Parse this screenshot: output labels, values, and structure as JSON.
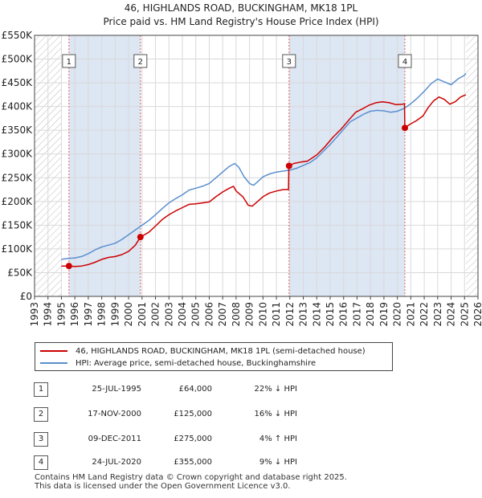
{
  "chart_data": {
    "type": "line",
    "title": "46, HIGHLANDS ROAD, BUCKINGHAM, MK18 1PL",
    "subtitle": "Price paid vs. HM Land Registry's House Price Index (HPI)",
    "xlim": [
      1993,
      2026
    ],
    "ylim": [
      0,
      550000
    ],
    "x_ticks": [
      "1993",
      "1994",
      "1995",
      "1996",
      "1997",
      "1998",
      "1999",
      "2000",
      "2001",
      "2002",
      "2003",
      "2004",
      "2005",
      "2006",
      "2007",
      "2008",
      "2009",
      "2010",
      "2011",
      "2012",
      "2013",
      "2014",
      "2015",
      "2016",
      "2017",
      "2018",
      "2019",
      "2020",
      "2021",
      "2022",
      "2023",
      "2024",
      "2025",
      "2026"
    ],
    "y_ticks": [
      {
        "value": 0,
        "label": "£0"
      },
      {
        "value": 50000,
        "label": "£50K"
      },
      {
        "value": 100000,
        "label": "£100K"
      },
      {
        "value": 150000,
        "label": "£150K"
      },
      {
        "value": 200000,
        "label": "£200K"
      },
      {
        "value": 250000,
        "label": "£250K"
      },
      {
        "value": 300000,
        "label": "£300K"
      },
      {
        "value": 350000,
        "label": "£350K"
      },
      {
        "value": 400000,
        "label": "£400K"
      },
      {
        "value": 450000,
        "label": "£450K"
      },
      {
        "value": 500000,
        "label": "£500K"
      },
      {
        "value": 550000,
        "label": "£550K"
      }
    ],
    "hatch_before": 1995.0,
    "hatch_after": 2025.1,
    "series": [
      {
        "name": "46, HIGHLANDS ROAD, BUCKINGHAM, MK18 1PL (semi-detached house)",
        "color": "#cc0000",
        "points": [
          [
            1995.0,
            64000
          ],
          [
            1995.56,
            64000
          ],
          [
            1996,
            63000
          ],
          [
            1996.5,
            64000
          ],
          [
            1997,
            67000
          ],
          [
            1997.5,
            72000
          ],
          [
            1998,
            78000
          ],
          [
            1998.5,
            82000
          ],
          [
            1999,
            84000
          ],
          [
            1999.5,
            88000
          ],
          [
            2000,
            95000
          ],
          [
            2000.5,
            108000
          ],
          [
            2000.88,
            125000
          ],
          [
            2001,
            127000
          ],
          [
            2001.5,
            135000
          ],
          [
            2002,
            148000
          ],
          [
            2002.5,
            162000
          ],
          [
            2003,
            172000
          ],
          [
            2003.5,
            180000
          ],
          [
            2004,
            187000
          ],
          [
            2004.5,
            194000
          ],
          [
            2005,
            195000
          ],
          [
            2005.5,
            197000
          ],
          [
            2006,
            199000
          ],
          [
            2006.5,
            210000
          ],
          [
            2007,
            220000
          ],
          [
            2007.5,
            228000
          ],
          [
            2007.8,
            232000
          ],
          [
            2008,
            222000
          ],
          [
            2008.5,
            210000
          ],
          [
            2008.9,
            192000
          ],
          [
            2009.2,
            190000
          ],
          [
            2009.6,
            200000
          ],
          [
            2010,
            210000
          ],
          [
            2010.5,
            218000
          ],
          [
            2011,
            222000
          ],
          [
            2011.5,
            225000
          ],
          [
            2011.9,
            225000
          ],
          [
            2011.93,
            275000
          ],
          [
            2012.3,
            280000
          ],
          [
            2012.8,
            283000
          ],
          [
            2013.3,
            285000
          ],
          [
            2014,
            298000
          ],
          [
            2014.6,
            315000
          ],
          [
            2015.2,
            335000
          ],
          [
            2015.8,
            352000
          ],
          [
            2016.4,
            372000
          ],
          [
            2016.9,
            388000
          ],
          [
            2017.4,
            395000
          ],
          [
            2017.9,
            403000
          ],
          [
            2018.4,
            408000
          ],
          [
            2018.9,
            410000
          ],
          [
            2019.4,
            408000
          ],
          [
            2019.9,
            404000
          ],
          [
            2020.4,
            405000
          ],
          [
            2020.53,
            406000
          ],
          [
            2020.56,
            355000
          ],
          [
            2020.9,
            362000
          ],
          [
            2021.4,
            370000
          ],
          [
            2021.9,
            380000
          ],
          [
            2022.3,
            398000
          ],
          [
            2022.7,
            412000
          ],
          [
            2023.1,
            420000
          ],
          [
            2023.5,
            415000
          ],
          [
            2023.9,
            405000
          ],
          [
            2024.3,
            410000
          ],
          [
            2024.7,
            420000
          ],
          [
            2025.1,
            425000
          ]
        ]
      },
      {
        "name": "HPI: Average price, semi-detached house, Buckinghamshire",
        "color": "#5b8fcf",
        "points": [
          [
            1995.0,
            78000
          ],
          [
            1995.5,
            80000
          ],
          [
            1996,
            81000
          ],
          [
            1996.5,
            84000
          ],
          [
            1997,
            90000
          ],
          [
            1997.5,
            98000
          ],
          [
            1998,
            104000
          ],
          [
            1998.5,
            108000
          ],
          [
            1999,
            112000
          ],
          [
            1999.5,
            120000
          ],
          [
            2000,
            130000
          ],
          [
            2000.5,
            140000
          ],
          [
            2001,
            150000
          ],
          [
            2001.5,
            160000
          ],
          [
            2002,
            172000
          ],
          [
            2002.5,
            185000
          ],
          [
            2003,
            197000
          ],
          [
            2003.5,
            206000
          ],
          [
            2004,
            214000
          ],
          [
            2004.5,
            224000
          ],
          [
            2005,
            228000
          ],
          [
            2005.5,
            232000
          ],
          [
            2006,
            238000
          ],
          [
            2006.5,
            250000
          ],
          [
            2007,
            262000
          ],
          [
            2007.5,
            274000
          ],
          [
            2007.9,
            280000
          ],
          [
            2008.2,
            272000
          ],
          [
            2008.6,
            252000
          ],
          [
            2009,
            238000
          ],
          [
            2009.3,
            234000
          ],
          [
            2009.7,
            244000
          ],
          [
            2010,
            252000
          ],
          [
            2010.5,
            258000
          ],
          [
            2011,
            262000
          ],
          [
            2011.5,
            264000
          ],
          [
            2012,
            266000
          ],
          [
            2012.5,
            270000
          ],
          [
            2013,
            276000
          ],
          [
            2013.5,
            282000
          ],
          [
            2014,
            292000
          ],
          [
            2014.5,
            306000
          ],
          [
            2015,
            320000
          ],
          [
            2015.5,
            336000
          ],
          [
            2016,
            352000
          ],
          [
            2016.5,
            368000
          ],
          [
            2017,
            376000
          ],
          [
            2017.5,
            384000
          ],
          [
            2018,
            390000
          ],
          [
            2018.5,
            392000
          ],
          [
            2019,
            391000
          ],
          [
            2019.5,
            388000
          ],
          [
            2020,
            390000
          ],
          [
            2020.5,
            396000
          ],
          [
            2021,
            406000
          ],
          [
            2021.5,
            418000
          ],
          [
            2022,
            432000
          ],
          [
            2022.5,
            448000
          ],
          [
            2023,
            458000
          ],
          [
            2023.5,
            452000
          ],
          [
            2024,
            446000
          ],
          [
            2024.5,
            458000
          ],
          [
            2025,
            466000
          ],
          [
            2025.1,
            470000
          ]
        ]
      }
    ],
    "sales": [
      {
        "num": "1",
        "x": 1995.56,
        "price": 64000
      },
      {
        "num": "2",
        "x": 2000.88,
        "price": 125000
      },
      {
        "num": "3",
        "x": 2011.94,
        "price": 275000
      },
      {
        "num": "4",
        "x": 2020.56,
        "price": 355000
      }
    ],
    "legend": [
      "46, HIGHLANDS ROAD, BUCKINGHAM, MK18 1PL (semi-detached house)",
      "HPI: Average price, semi-detached house, Buckinghamshire"
    ]
  },
  "table": [
    {
      "num": "1",
      "date": "25-JUL-1995",
      "price": "£64,000",
      "hpi": "22% ↓ HPI"
    },
    {
      "num": "2",
      "date": "17-NOV-2000",
      "price": "£125,000",
      "hpi": "16% ↓ HPI"
    },
    {
      "num": "3",
      "date": "09-DEC-2011",
      "price": "£275,000",
      "hpi": "4% ↑ HPI"
    },
    {
      "num": "4",
      "date": "24-JUL-2020",
      "price": "£355,000",
      "hpi": "9% ↓ HPI"
    }
  ],
  "footer": {
    "line1": "Contains HM Land Registry data © Crown copyright and database right 2025.",
    "line2": "This data is licensed under the Open Government Licence v3.0."
  },
  "colors": {
    "price": "#cc0000",
    "hpi": "#5b8fcf",
    "highlight": "#dde6f3",
    "grid": "#d9d9d9"
  }
}
